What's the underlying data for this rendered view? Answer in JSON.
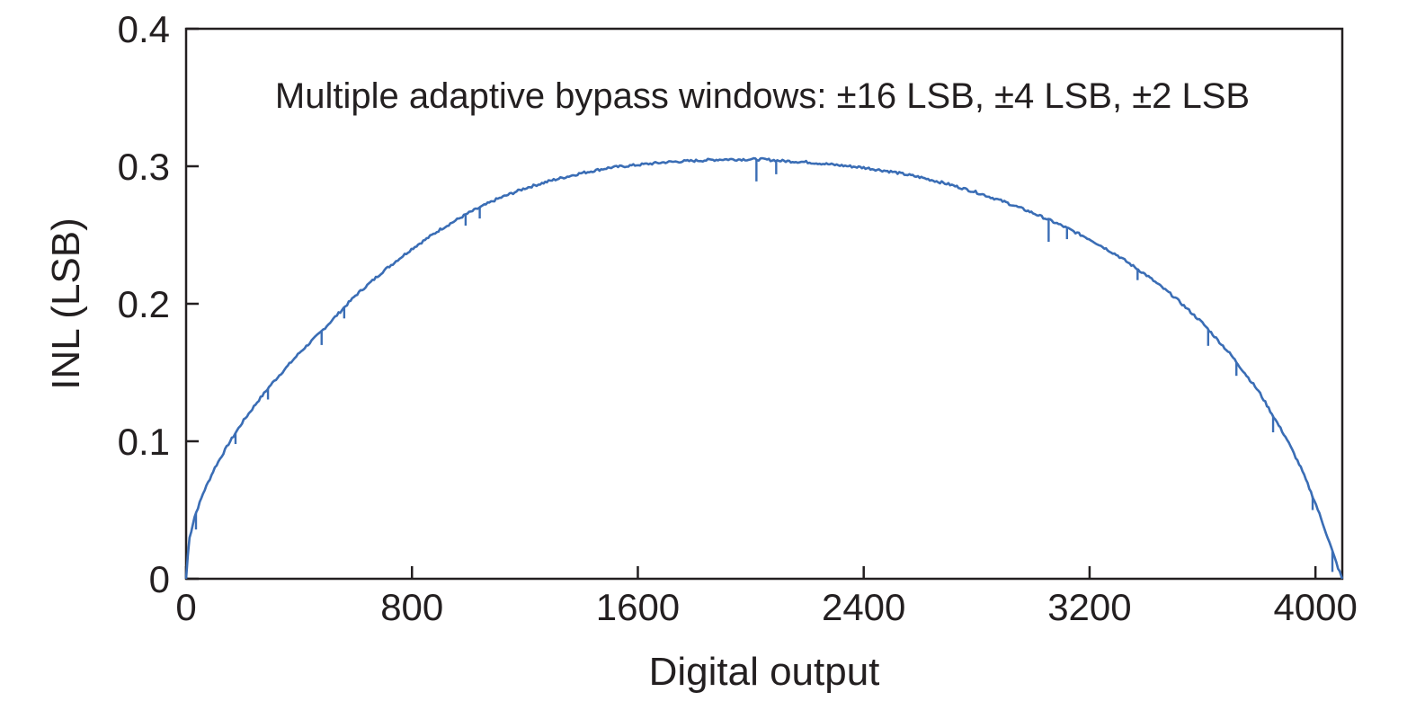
{
  "chart_data": {
    "type": "line",
    "title": "",
    "annotation": "Multiple adaptive bypass windows: ±16 LSB, ±4 LSB, ±2 LSB",
    "xlabel": "Digital output",
    "ylabel": "INL (LSB)",
    "xlim": [
      0,
      4095
    ],
    "ylim": [
      0,
      0.4
    ],
    "xticks": [
      0,
      800,
      1600,
      2400,
      3200,
      4000
    ],
    "yticks": [
      0,
      0.1,
      0.2,
      0.3,
      0.4
    ],
    "xtick_labels": [
      "0",
      "800",
      "1600",
      "2400",
      "3200",
      "4000"
    ],
    "ytick_labels": [
      "0",
      "0.1",
      "0.2",
      "0.3",
      "0.4"
    ],
    "grid": false,
    "line_color": "#3a6db5",
    "series": [
      {
        "x": [
          0,
          10,
          30,
          60,
          100,
          150,
          200,
          250,
          300,
          400,
          480,
          600,
          700,
          800,
          900,
          1000,
          1100,
          1200,
          1300,
          1400,
          1500,
          1600,
          1700,
          1800,
          1900,
          2000,
          2048,
          2100,
          2200,
          2300,
          2400,
          2500,
          2600,
          2700,
          2800,
          2900,
          3000,
          3100,
          3200,
          3300,
          3400,
          3500,
          3600,
          3700,
          3800,
          3900,
          3950,
          4000,
          4030,
          4060,
          4080,
          4095
        ],
        "y": [
          0,
          0.028,
          0.045,
          0.062,
          0.08,
          0.098,
          0.114,
          0.128,
          0.141,
          0.164,
          0.18,
          0.206,
          0.224,
          0.24,
          0.254,
          0.266,
          0.276,
          0.284,
          0.29,
          0.295,
          0.299,
          0.301,
          0.303,
          0.304,
          0.305,
          0.305,
          0.305,
          0.304,
          0.303,
          0.301,
          0.299,
          0.296,
          0.292,
          0.287,
          0.281,
          0.274,
          0.266,
          0.257,
          0.247,
          0.235,
          0.221,
          0.205,
          0.186,
          0.163,
          0.136,
          0.101,
          0.08,
          0.055,
          0.038,
          0.02,
          0.008,
          0
        ]
      }
    ],
    "spikes": [
      {
        "x": 35,
        "depth": 0.012
      },
      {
        "x": 175,
        "depth": 0.008
      },
      {
        "x": 290,
        "depth": 0.008
      },
      {
        "x": 480,
        "depth": 0.01
      },
      {
        "x": 560,
        "depth": 0.008
      },
      {
        "x": 990,
        "depth": 0.008
      },
      {
        "x": 1040,
        "depth": 0.008
      },
      {
        "x": 2020,
        "depth": 0.016
      },
      {
        "x": 2090,
        "depth": 0.01
      },
      {
        "x": 3055,
        "depth": 0.016
      },
      {
        "x": 3120,
        "depth": 0.008
      },
      {
        "x": 3370,
        "depth": 0.008
      },
      {
        "x": 3620,
        "depth": 0.012
      },
      {
        "x": 3720,
        "depth": 0.01
      },
      {
        "x": 3850,
        "depth": 0.012
      },
      {
        "x": 3990,
        "depth": 0.01
      },
      {
        "x": 4060,
        "depth": 0.015
      }
    ]
  }
}
